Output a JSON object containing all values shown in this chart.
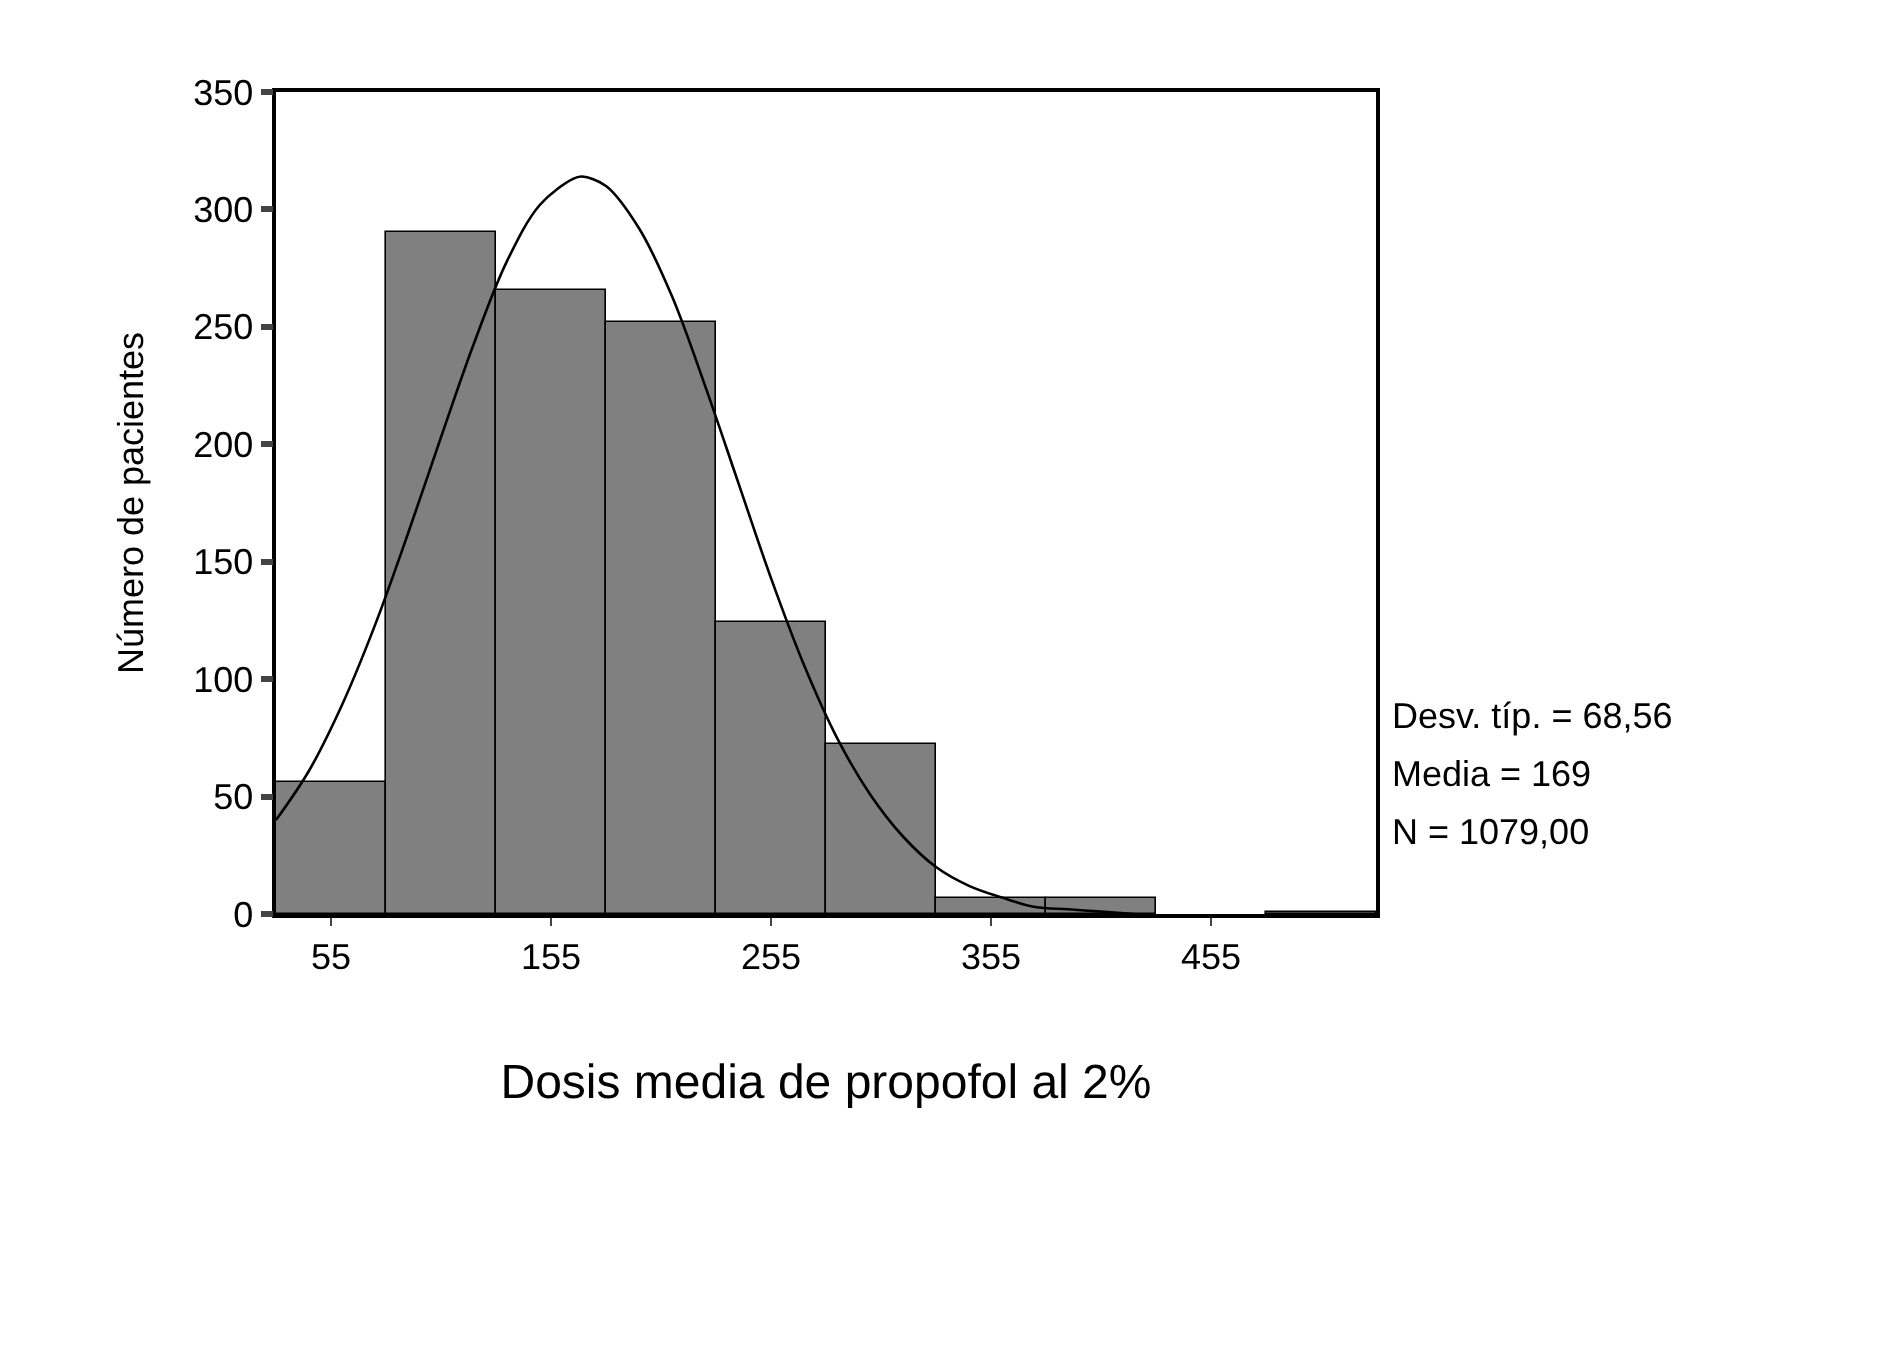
{
  "chart_data": {
    "type": "histogram",
    "xlabel": "Dosis media de propofol al 2%",
    "ylabel": "Número de pacientes",
    "bins": [
      30,
      80,
      130,
      180,
      230,
      280,
      330,
      380,
      430,
      480,
      530
    ],
    "values": [
      56,
      290,
      266,
      252,
      124,
      72,
      7,
      7,
      0,
      1
    ],
    "color": "#808080",
    "series": [
      {
        "type": "line",
        "color": "#000000",
        "x": [
          30,
          45,
          60,
          75,
          90,
          105,
          120,
          135,
          150,
          165,
          169,
          180,
          195,
          210,
          225,
          240,
          255,
          270,
          285,
          300,
          315,
          330,
          345,
          360,
          375,
          390,
          405,
          420
        ],
        "values": [
          40,
          61,
          89,
          123,
          162,
          203,
          243,
          278,
          302,
          313,
          314,
          310,
          292,
          263,
          225,
          184,
          143,
          106,
          75,
          51,
          33,
          20,
          12,
          7,
          3,
          2,
          1,
          0
        ]
      }
    ],
    "xlim": [
      30,
      530
    ],
    "xticks": [
      55,
      155,
      255,
      355,
      455
    ],
    "ylim": [
      0,
      350
    ],
    "yticks": [
      0,
      50,
      100,
      150,
      200,
      250,
      300,
      350
    ],
    "annotations": [
      "Desv. típ. = 68,56",
      "Media = 169",
      "N = 1079,00"
    ],
    "marker": "none"
  }
}
